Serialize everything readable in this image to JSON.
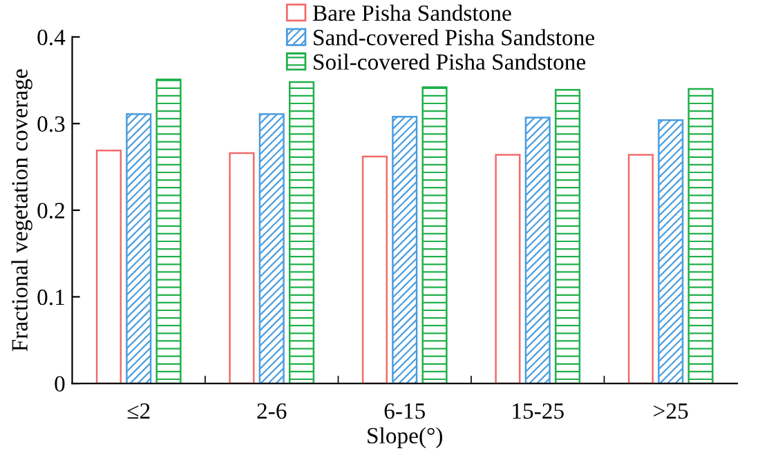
{
  "chart_data": {
    "type": "bar",
    "xlabel": "Slope(°)",
    "ylabel": "Fractional vegetation coverage",
    "categories": [
      "≤2",
      "2-6",
      "6-15",
      "15-25",
      ">25"
    ],
    "series": [
      {
        "name": "Bare Pisha Sandstone",
        "color": "#f26b6b",
        "values": [
          0.269,
          0.266,
          0.262,
          0.264,
          0.264
        ]
      },
      {
        "name": "Sand-covered Pisha Sandstone",
        "color": "#4a9de0",
        "values": [
          0.311,
          0.311,
          0.308,
          0.307,
          0.304
        ]
      },
      {
        "name": "Soil-covered Pisha Sandstone",
        "color": "#1fb04a",
        "values": [
          0.351,
          0.348,
          0.342,
          0.339,
          0.34
        ]
      }
    ],
    "ylim": [
      0,
      0.4
    ],
    "yticks": [
      0,
      0.1,
      0.2,
      0.3,
      0.4
    ],
    "grid": false,
    "legend": "top right"
  }
}
